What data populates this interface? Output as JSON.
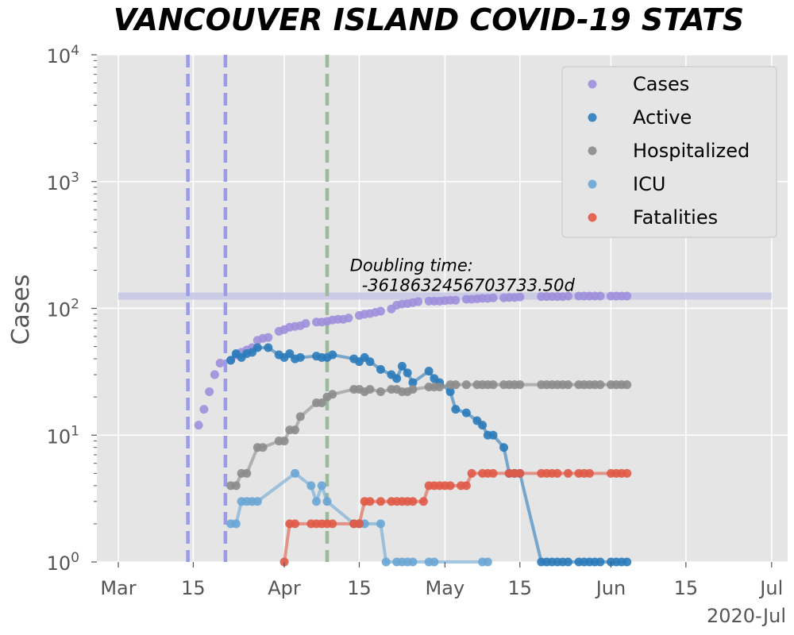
{
  "chart_data": {
    "type": "line",
    "title": "VANCOUVER ISLAND COVID-19 STATS",
    "ylabel": "Cases",
    "yscale": "log",
    "ylim": [
      1,
      10000
    ],
    "xlim": [
      "2020-02-26",
      "2020-07-04"
    ],
    "grid": true,
    "legend_position": "top-right",
    "x_ticks": [
      {
        "date": "2020-03-01",
        "label": "Mar"
      },
      {
        "date": "2020-03-15",
        "label": "15"
      },
      {
        "date": "2020-04-01",
        "label": "Apr"
      },
      {
        "date": "2020-04-15",
        "label": "15"
      },
      {
        "date": "2020-05-01",
        "label": "May"
      },
      {
        "date": "2020-05-15",
        "label": "15"
      },
      {
        "date": "2020-06-01",
        "label": "Jun"
      },
      {
        "date": "2020-06-15",
        "label": "15"
      },
      {
        "date": "2020-07-01",
        "label": "Jul"
      }
    ],
    "x_offset_label": "2020-Jul",
    "y_ticks": [
      {
        "value": 1,
        "base": "10",
        "exp": "0"
      },
      {
        "value": 10,
        "base": "10",
        "exp": "1"
      },
      {
        "value": 100,
        "base": "10",
        "exp": "2"
      },
      {
        "value": 1000,
        "base": "10",
        "exp": "3"
      },
      {
        "value": 10000,
        "base": "10",
        "exp": "4"
      }
    ],
    "vertical_lines": [
      {
        "date": "2020-03-14",
        "color": "#9b9be8"
      },
      {
        "date": "2020-03-21",
        "color": "#9b9be8"
      },
      {
        "date": "2020-04-09",
        "color": "#99bb99"
      }
    ],
    "horizontal_band": {
      "value": 125,
      "x_start": "2020-03-01",
      "x_end": "2020-07-01",
      "color": "#c8c8e6"
    },
    "annotation": {
      "line1": "Doubling time:",
      "line2": "-3618632456703733.50d",
      "date": "2020-04-14",
      "value": 180
    },
    "series": [
      {
        "name": "Cases",
        "color": "#9f8fdb",
        "line": false,
        "x": [
          "2020-03-16",
          "2020-03-17",
          "2020-03-18",
          "2020-03-19",
          "2020-03-20",
          "2020-03-22",
          "2020-03-23",
          "2020-03-24",
          "2020-03-25",
          "2020-03-26",
          "2020-03-27",
          "2020-03-28",
          "2020-03-29",
          "2020-03-31",
          "2020-04-01",
          "2020-04-02",
          "2020-04-03",
          "2020-04-04",
          "2020-04-05",
          "2020-04-07",
          "2020-04-08",
          "2020-04-09",
          "2020-04-10",
          "2020-04-11",
          "2020-04-12",
          "2020-04-13",
          "2020-04-15",
          "2020-04-16",
          "2020-04-17",
          "2020-04-18",
          "2020-04-19",
          "2020-04-21",
          "2020-04-22",
          "2020-04-23",
          "2020-04-24",
          "2020-04-25",
          "2020-04-26",
          "2020-04-28",
          "2020-04-29",
          "2020-04-30",
          "2020-05-01",
          "2020-05-02",
          "2020-05-03",
          "2020-05-05",
          "2020-05-06",
          "2020-05-07",
          "2020-05-08",
          "2020-05-09",
          "2020-05-10",
          "2020-05-12",
          "2020-05-13",
          "2020-05-14",
          "2020-05-15",
          "2020-05-19",
          "2020-05-20",
          "2020-05-21",
          "2020-05-22",
          "2020-05-23",
          "2020-05-24",
          "2020-05-26",
          "2020-05-27",
          "2020-05-28",
          "2020-05-29",
          "2020-05-30",
          "2020-06-01",
          "2020-06-02",
          "2020-06-03",
          "2020-06-04"
        ],
        "y": [
          12,
          16,
          22,
          30,
          37,
          39,
          43,
          45,
          47,
          49,
          56,
          58,
          59,
          66,
          68,
          71,
          72,
          73,
          76,
          78,
          78,
          79,
          81,
          82,
          82,
          84,
          88,
          90,
          91,
          93,
          95,
          99,
          106,
          108,
          109,
          111,
          113,
          114,
          114,
          114,
          115,
          116,
          116,
          118,
          118,
          119,
          120,
          120,
          121,
          121,
          122,
          122,
          123,
          124,
          124,
          124,
          124,
          124,
          125,
          125,
          125,
          125,
          125,
          125,
          125,
          125,
          125,
          125
        ]
      },
      {
        "name": "Active",
        "color": "#2b7bba",
        "line": true,
        "x": [
          "2020-03-22",
          "2020-03-23",
          "2020-03-24",
          "2020-03-25",
          "2020-03-26",
          "2020-03-27",
          "2020-03-29",
          "2020-03-31",
          "2020-04-01",
          "2020-04-02",
          "2020-04-03",
          "2020-04-04",
          "2020-04-07",
          "2020-04-08",
          "2020-04-09",
          "2020-04-10",
          "2020-04-14",
          "2020-04-15",
          "2020-04-16",
          "2020-04-17",
          "2020-04-19",
          "2020-04-21",
          "2020-04-22",
          "2020-04-23",
          "2020-04-24",
          "2020-04-25",
          "2020-04-28",
          "2020-04-29",
          "2020-04-30",
          "2020-05-02",
          "2020-05-03",
          "2020-05-05",
          "2020-05-07",
          "2020-05-08",
          "2020-05-09",
          "2020-05-10",
          "2020-05-12",
          "2020-05-13",
          "2020-05-14",
          "2020-05-15",
          "2020-05-19",
          "2020-05-20",
          "2020-05-21",
          "2020-05-22",
          "2020-05-23",
          "2020-05-24",
          "2020-05-26",
          "2020-05-27",
          "2020-05-28",
          "2020-05-29",
          "2020-05-30",
          "2020-06-01",
          "2020-06-02",
          "2020-06-03",
          "2020-06-04"
        ],
        "y": [
          39,
          44,
          41,
          44,
          45,
          49,
          49,
          43,
          41,
          44,
          40,
          41,
          42,
          41,
          41,
          43,
          40,
          38,
          41,
          38,
          33,
          30,
          28,
          35,
          31,
          26,
          32,
          28,
          26,
          22,
          16,
          15,
          13,
          12,
          10,
          10,
          8,
          5,
          5,
          5,
          1,
          1,
          1,
          1,
          1,
          1,
          1,
          1,
          1,
          1,
          1,
          1,
          1,
          1,
          1
        ]
      },
      {
        "name": "Hospitalized",
        "color": "#8c8c8c",
        "line": true,
        "x": [
          "2020-03-22",
          "2020-03-23",
          "2020-03-24",
          "2020-03-25",
          "2020-03-27",
          "2020-03-28",
          "2020-03-31",
          "2020-04-01",
          "2020-04-02",
          "2020-04-03",
          "2020-04-04",
          "2020-04-07",
          "2020-04-08",
          "2020-04-09",
          "2020-04-10",
          "2020-04-14",
          "2020-04-15",
          "2020-04-16",
          "2020-04-17",
          "2020-04-19",
          "2020-04-21",
          "2020-04-22",
          "2020-04-23",
          "2020-04-24",
          "2020-04-25",
          "2020-04-28",
          "2020-04-29",
          "2020-04-30",
          "2020-05-02",
          "2020-05-03",
          "2020-05-05",
          "2020-05-07",
          "2020-05-08",
          "2020-05-09",
          "2020-05-10",
          "2020-05-12",
          "2020-05-13",
          "2020-05-14",
          "2020-05-15",
          "2020-05-19",
          "2020-05-20",
          "2020-05-21",
          "2020-05-22",
          "2020-05-23",
          "2020-05-24",
          "2020-05-26",
          "2020-05-27",
          "2020-05-28",
          "2020-05-29",
          "2020-05-30",
          "2020-06-01",
          "2020-06-02",
          "2020-06-03",
          "2020-06-04"
        ],
        "y": [
          4,
          4,
          5,
          5,
          8,
          8,
          9,
          9,
          11,
          11,
          14,
          18,
          18,
          20,
          21,
          23,
          23,
          22,
          23,
          22,
          23,
          23,
          22,
          22,
          23,
          24,
          24,
          24,
          25,
          25,
          25,
          25,
          25,
          25,
          25,
          25,
          25,
          25,
          25,
          25,
          25,
          25,
          25,
          25,
          25,
          25,
          25,
          25,
          25,
          25,
          25,
          25,
          25,
          25
        ]
      },
      {
        "name": "ICU",
        "color": "#6aa6d4",
        "line": true,
        "x": [
          "2020-03-22",
          "2020-03-23",
          "2020-03-24",
          "2020-03-25",
          "2020-03-26",
          "2020-03-27",
          "2020-04-03",
          "2020-04-06",
          "2020-04-07",
          "2020-04-08",
          "2020-04-09",
          "2020-04-14",
          "2020-04-15",
          "2020-04-16",
          "2020-04-19",
          "2020-04-20",
          "2020-04-22",
          "2020-04-23",
          "2020-04-24",
          "2020-04-25",
          "2020-04-28",
          "2020-04-29",
          "2020-05-08",
          "2020-05-09"
        ],
        "y": [
          2,
          2,
          3,
          3,
          3,
          3,
          5,
          4,
          3,
          4,
          3,
          2,
          2,
          2,
          2,
          1,
          1,
          1,
          1,
          1,
          1,
          1,
          1,
          1
        ]
      },
      {
        "name": "Fatalities",
        "color": "#e05a47",
        "line": true,
        "x": [
          "2020-04-01",
          "2020-04-02",
          "2020-04-03",
          "2020-04-06",
          "2020-04-07",
          "2020-04-08",
          "2020-04-09",
          "2020-04-10",
          "2020-04-14",
          "2020-04-15",
          "2020-04-16",
          "2020-04-17",
          "2020-04-19",
          "2020-04-21",
          "2020-04-22",
          "2020-04-23",
          "2020-04-24",
          "2020-04-25",
          "2020-04-27",
          "2020-04-28",
          "2020-04-29",
          "2020-04-30",
          "2020-05-01",
          "2020-05-02",
          "2020-05-04",
          "2020-05-05",
          "2020-05-06",
          "2020-05-08",
          "2020-05-09",
          "2020-05-10",
          "2020-05-13",
          "2020-05-14",
          "2020-05-15",
          "2020-05-19",
          "2020-05-20",
          "2020-05-21",
          "2020-05-22",
          "2020-05-24",
          "2020-05-26",
          "2020-05-27",
          "2020-05-28",
          "2020-06-01",
          "2020-06-02",
          "2020-06-03",
          "2020-06-04"
        ],
        "y": [
          1,
          2,
          2,
          2,
          2,
          2,
          2,
          2,
          2,
          2,
          3,
          3,
          3,
          3,
          3,
          3,
          3,
          3,
          3,
          4,
          4,
          4,
          4,
          4,
          4,
          4,
          5,
          5,
          5,
          5,
          5,
          5,
          5,
          5,
          5,
          5,
          5,
          5,
          5,
          5,
          5,
          5,
          5,
          5,
          5
        ]
      }
    ]
  }
}
